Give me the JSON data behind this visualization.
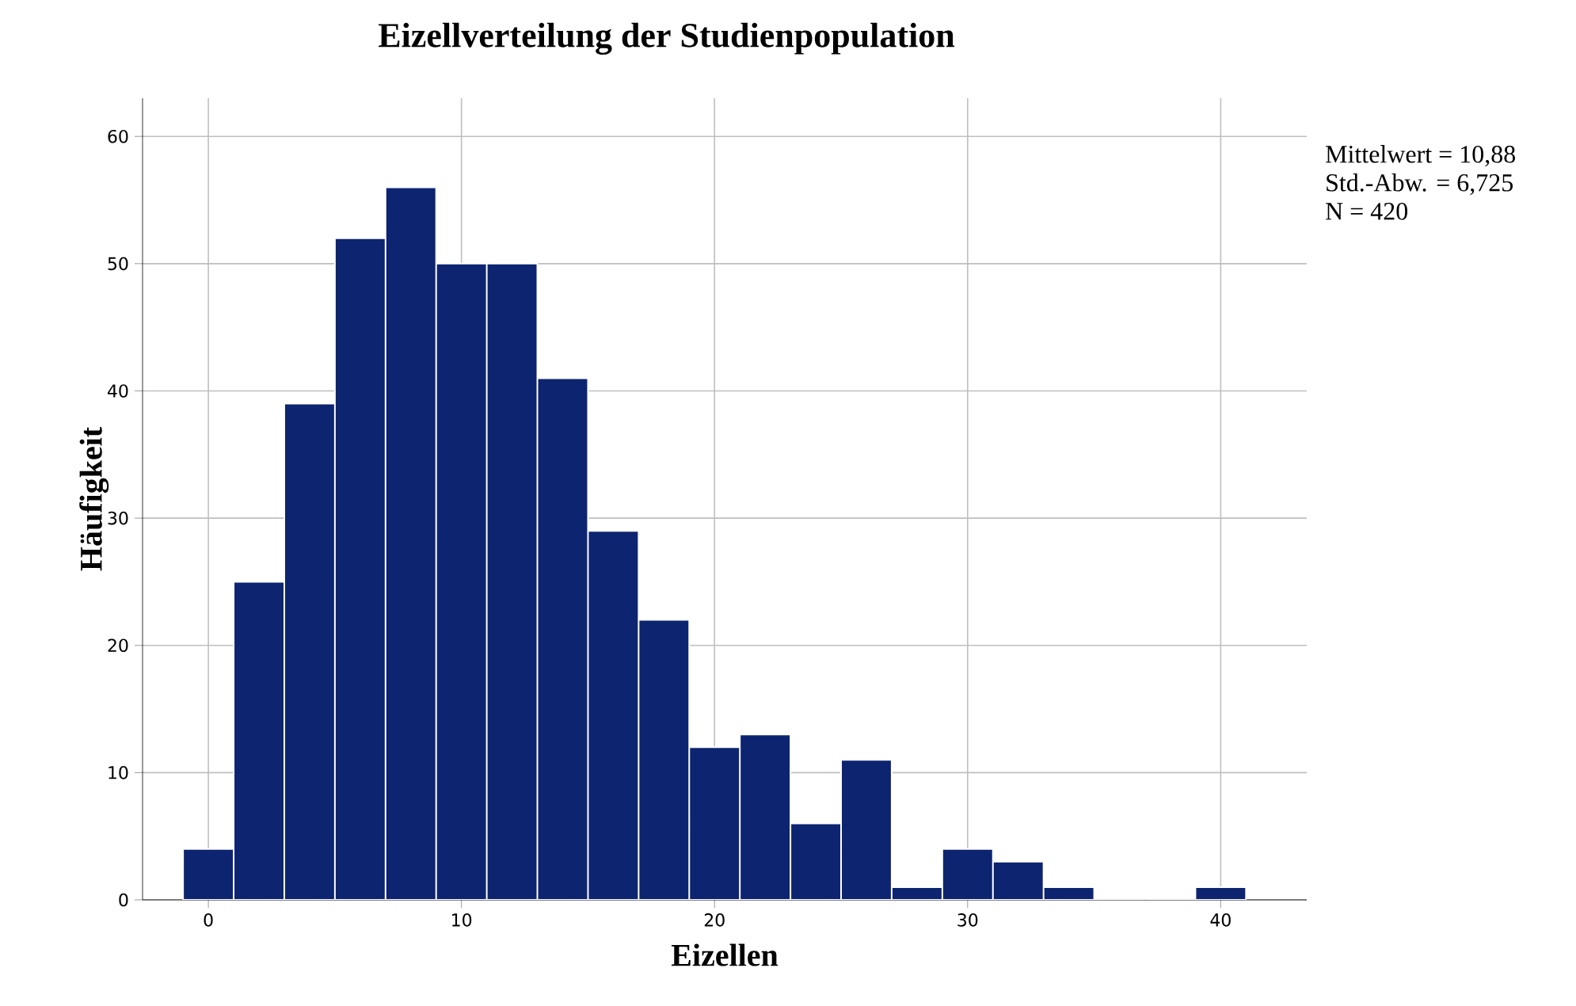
{
  "chart_data": {
    "type": "histogram",
    "title": "Eizellverteilung der Studienpopulation",
    "xlabel": "Eizellen",
    "ylabel": "Häufigkeit",
    "bins": [
      -1,
      1,
      3,
      5,
      7,
      9,
      11,
      13,
      15,
      17,
      19,
      21,
      23,
      25,
      27,
      29,
      31,
      33,
      35,
      37,
      39,
      41
    ],
    "values": [
      4,
      25,
      39,
      52,
      56,
      50,
      50,
      41,
      29,
      22,
      12,
      13,
      6,
      11,
      1,
      4,
      3,
      1,
      0,
      0,
      1
    ],
    "color": "#0d2470",
    "xlim": [
      -2.6,
      43.4
    ],
    "ylim": [
      0,
      63
    ],
    "xticks": [
      0,
      10,
      20,
      30,
      40
    ],
    "yticks": [
      0,
      10,
      20,
      30,
      40,
      50,
      60
    ],
    "grid": true,
    "annotations": [
      "Mittelwert = 10,88",
      "Std.-Abw. = 6,725",
      "N = 420"
    ]
  }
}
